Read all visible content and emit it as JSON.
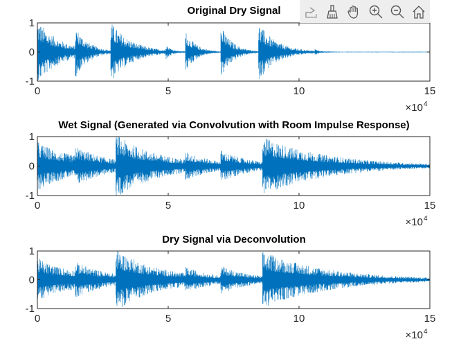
{
  "toolbar": {
    "icons": [
      "export-icon",
      "brush-icon",
      "pan-hand-icon",
      "zoom-in-icon",
      "zoom-out-icon",
      "home-icon"
    ]
  },
  "chart_data": [
    {
      "type": "line",
      "title": "Original Dry Signal",
      "xlim": [
        0,
        150000
      ],
      "ylim": [
        -1,
        1
      ],
      "xticks": [
        0,
        50000,
        100000,
        150000
      ],
      "xtick_labels": [
        "0",
        "5",
        "10",
        "15"
      ],
      "yticks": [
        -1,
        0,
        1
      ],
      "ytick_labels": [
        "-1",
        "0",
        "1"
      ],
      "x_exponent_label": "×10",
      "x_exponent": "4",
      "color": "#0072bd",
      "onsets": [
        {
          "x": 0,
          "peak": 1.0,
          "decay": 9000,
          "floor": 0.12
        },
        {
          "x": 14500,
          "peak": 0.8,
          "decay": 5000,
          "floor": 0.1
        },
        {
          "x": 28000,
          "peak": 1.0,
          "decay": 8000,
          "floor": 0.05
        },
        {
          "x": 49000,
          "peak": 0.3,
          "decay": 2500,
          "floor": 0
        },
        {
          "x": 56500,
          "peak": 0.75,
          "decay": 4000,
          "floor": 0
        },
        {
          "x": 70000,
          "peak": 0.95,
          "decay": 4500,
          "floor": 0
        },
        {
          "x": 84500,
          "peak": 1.0,
          "decay": 7000,
          "floor": 0
        },
        {
          "x": 106000,
          "peak": 0.12,
          "decay": 2000,
          "floor": 0
        }
      ]
    },
    {
      "type": "line",
      "title": "Wet Signal (Generated via Convolvution with Room Impulse Response)",
      "xlim": [
        0,
        150000
      ],
      "ylim": [
        -1,
        1
      ],
      "xticks": [
        0,
        50000,
        100000,
        150000
      ],
      "xtick_labels": [
        "0",
        "5",
        "10",
        "15"
      ],
      "yticks": [
        -1,
        0,
        1
      ],
      "ytick_labels": [
        "-1",
        "0",
        "1"
      ],
      "x_exponent_label": "×10",
      "x_exponent": "4",
      "color": "#0072bd",
      "onsets": [
        {
          "x": 0,
          "peak": 0.6,
          "decay": 25000,
          "floor": 0.25
        },
        {
          "x": 14500,
          "peak": 0.6,
          "decay": 15000,
          "floor": 0.1
        },
        {
          "x": 30000,
          "peak": 1.0,
          "decay": 18000,
          "floor": 0.1
        },
        {
          "x": 56500,
          "peak": 0.5,
          "decay": 12000,
          "floor": 0
        },
        {
          "x": 70000,
          "peak": 0.55,
          "decay": 12000,
          "floor": 0
        },
        {
          "x": 86000,
          "peak": 1.0,
          "decay": 25000,
          "floor": 0
        }
      ]
    },
    {
      "type": "line",
      "title": "Dry Signal via Deconvolution",
      "xlim": [
        0,
        150000
      ],
      "ylim": [
        -1,
        1
      ],
      "xticks": [
        0,
        50000,
        100000,
        150000
      ],
      "xtick_labels": [
        "0",
        "5",
        "10",
        "15"
      ],
      "yticks": [
        -1,
        0,
        1
      ],
      "ytick_labels": [
        "-1",
        "0",
        "1"
      ],
      "x_exponent_label": "×10",
      "x_exponent": "4",
      "color": "#0072bd",
      "onsets": [
        {
          "x": 0,
          "peak": 0.55,
          "decay": 25000,
          "floor": 0.22
        },
        {
          "x": 14500,
          "peak": 0.55,
          "decay": 15000,
          "floor": 0.1
        },
        {
          "x": 30000,
          "peak": 1.0,
          "decay": 18000,
          "floor": 0.1
        },
        {
          "x": 56500,
          "peak": 0.45,
          "decay": 12000,
          "floor": 0
        },
        {
          "x": 70000,
          "peak": 0.5,
          "decay": 12000,
          "floor": 0
        },
        {
          "x": 86000,
          "peak": 1.0,
          "decay": 25000,
          "floor": 0
        }
      ]
    }
  ]
}
